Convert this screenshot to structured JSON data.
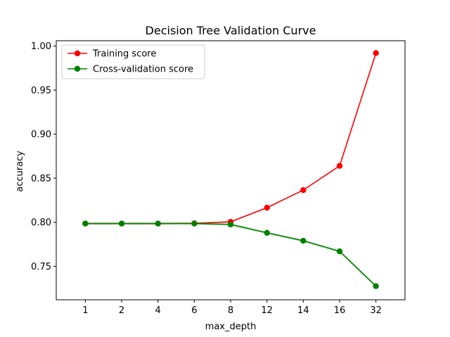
{
  "chart_data": {
    "type": "line",
    "title": "Decision Tree Validation Curve",
    "xlabel": "max_depth",
    "ylabel": "accuracy",
    "categories": [
      "1",
      "2",
      "4",
      "6",
      "8",
      "12",
      "14",
      "16",
      "32"
    ],
    "ylim": [
      0.712,
      1.006
    ],
    "yticks": [
      0.75,
      0.8,
      0.85,
      0.9,
      0.95,
      1.0
    ],
    "ytick_labels": [
      "0.75",
      "0.80",
      "0.85",
      "0.90",
      "0.95",
      "1.00"
    ],
    "grid": false,
    "legend_position": "top-left",
    "series": [
      {
        "name": "Training score",
        "color": "#ff0000",
        "values": [
          0.7985,
          0.7985,
          0.7985,
          0.7988,
          0.8005,
          0.8165,
          0.8365,
          0.864,
          0.992
        ]
      },
      {
        "name": "Cross-validation score",
        "color": "#008000",
        "values": [
          0.7985,
          0.7985,
          0.7985,
          0.7985,
          0.7975,
          0.788,
          0.779,
          0.767,
          0.7275
        ],
        "band": 0.0015
      }
    ]
  }
}
